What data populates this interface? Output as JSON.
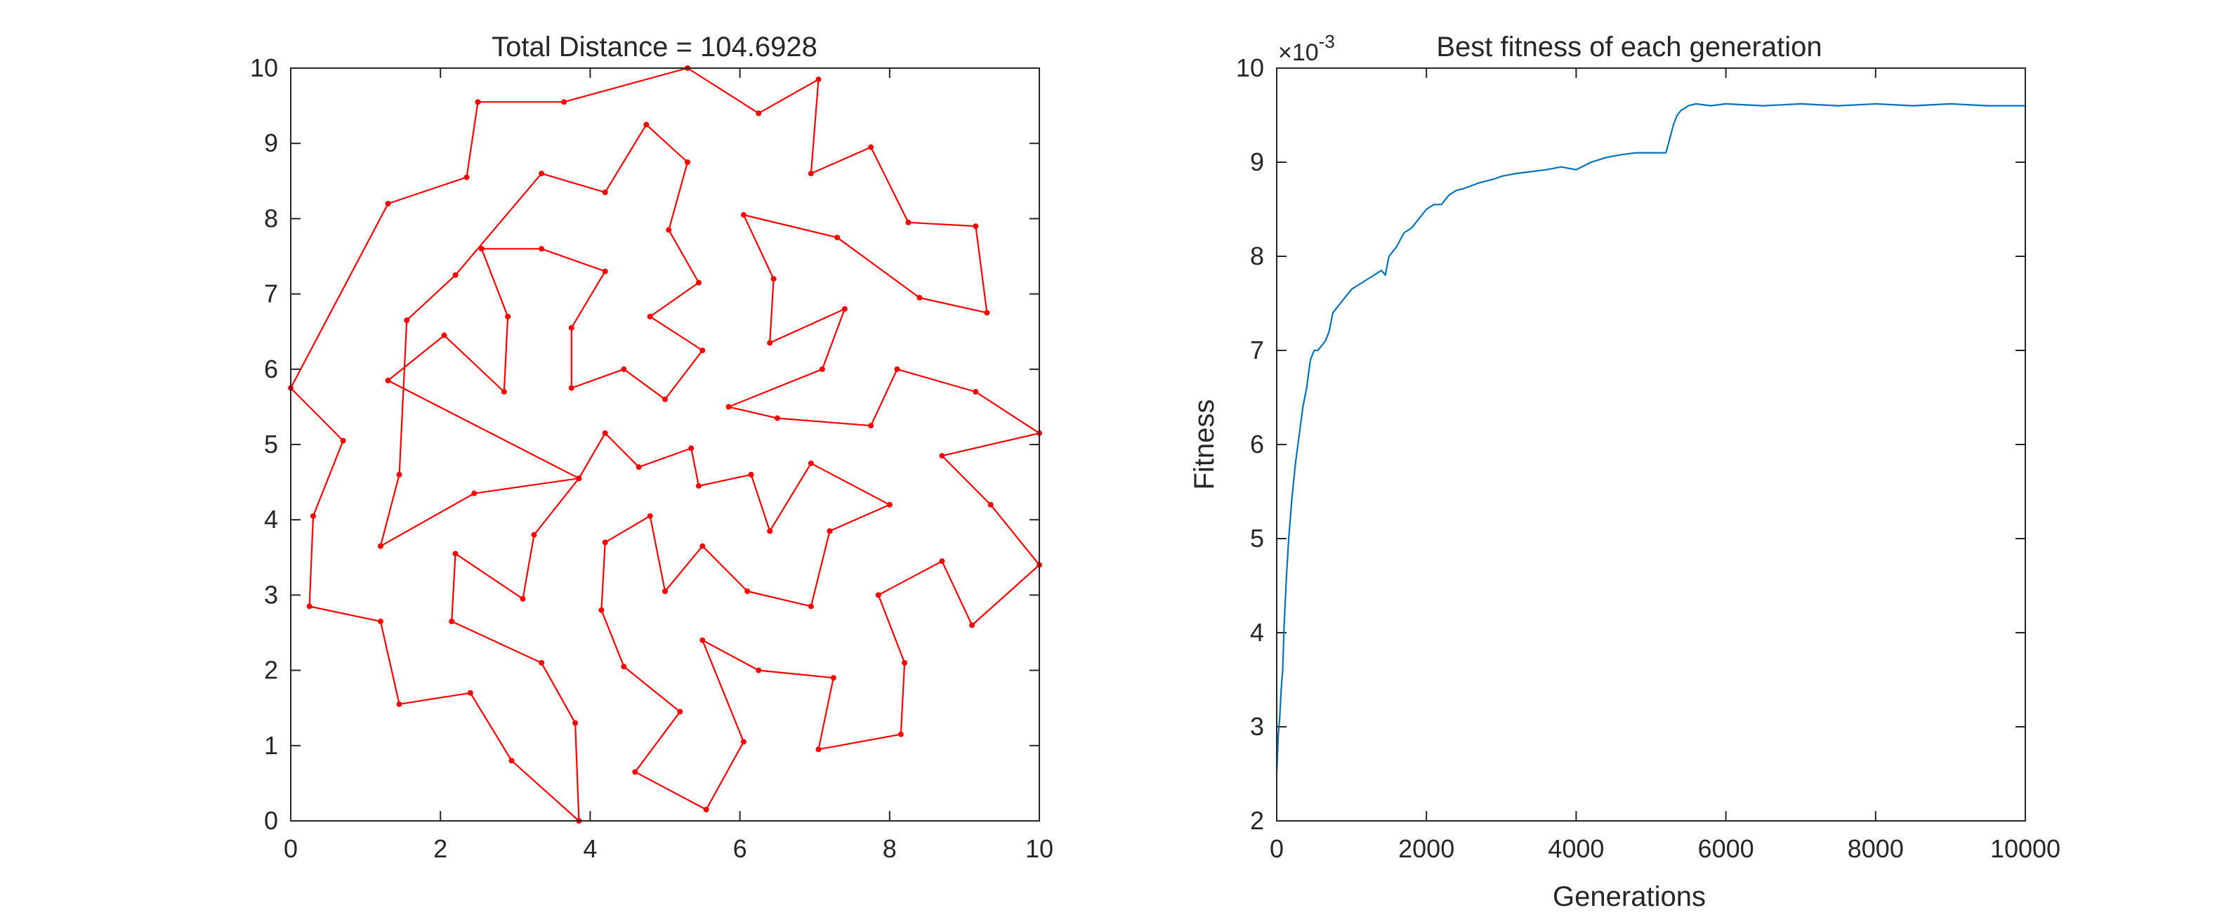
{
  "colors": {
    "tour": "#ff0000",
    "fitness": "#0072bd",
    "axes": "#262626",
    "background": "#ffffff"
  },
  "chart_data": [
    {
      "type": "line",
      "title": "Total Distance = 104.6928",
      "xlabel": "",
      "ylabel": "",
      "xlim": [
        0,
        10
      ],
      "ylim": [
        0,
        10
      ],
      "xticks": [
        "0",
        "2",
        "4",
        "6",
        "8",
        "10"
      ],
      "yticks": [
        "0",
        "1",
        "2",
        "3",
        "4",
        "5",
        "6",
        "7",
        "8",
        "9",
        "10"
      ],
      "grid": false,
      "markers": true,
      "closed": true,
      "series": [
        {
          "x": [
            0.0,
            0.7,
            0.3,
            0.25,
            1.2,
            1.45,
            2.4,
            2.95,
            3.85,
            3.8,
            3.35,
            2.15,
            2.2,
            3.1,
            3.25,
            3.85,
            1.3,
            2.05,
            2.85,
            2.9,
            2.55,
            3.35,
            4.2,
            3.75,
            3.75,
            4.45,
            5.0,
            5.5,
            4.8,
            5.45,
            5.05,
            5.3,
            4.75,
            4.2,
            3.35,
            2.2,
            1.55,
            1.45,
            1.2,
            2.45,
            3.85,
            4.2,
            4.65,
            5.35,
            5.45,
            6.15,
            6.4,
            6.95,
            8.0,
            7.2,
            6.95,
            6.1,
            5.5,
            5.0,
            4.8,
            4.2,
            4.15,
            4.45,
            5.2,
            4.6,
            5.55,
            6.05,
            5.5,
            6.25,
            7.25,
            7.05,
            8.15,
            8.2,
            7.85,
            8.7,
            9.1,
            10.0,
            9.35,
            8.7,
            10.0,
            9.15,
            8.1,
            7.75,
            6.5,
            5.85,
            7.1,
            7.4,
            6.4,
            6.45,
            6.05,
            7.3,
            8.4,
            9.3,
            9.15,
            8.25,
            7.75,
            6.95,
            7.05,
            6.25,
            5.3,
            3.65,
            2.5,
            2.35,
            1.3
          ],
          "y": [
            5.75,
            5.05,
            4.05,
            2.85,
            2.65,
            1.55,
            1.7,
            0.8,
            0.0,
            1.3,
            2.1,
            2.65,
            3.55,
            2.95,
            3.8,
            4.55,
            5.85,
            6.45,
            5.7,
            6.7,
            7.6,
            7.6,
            7.3,
            6.55,
            5.75,
            6.0,
            5.6,
            6.25,
            6.7,
            7.15,
            7.85,
            8.75,
            9.25,
            8.35,
            8.6,
            7.25,
            6.65,
            4.6,
            3.65,
            4.35,
            4.55,
            5.15,
            4.7,
            4.95,
            4.45,
            4.6,
            3.85,
            4.75,
            4.2,
            3.85,
            2.85,
            3.05,
            3.65,
            3.05,
            4.05,
            3.7,
            2.8,
            2.05,
            1.45,
            0.65,
            0.15,
            1.05,
            2.4,
            2.0,
            1.9,
            0.95,
            1.15,
            2.1,
            3.0,
            3.45,
            2.6,
            3.4,
            4.2,
            4.85,
            5.15,
            5.7,
            6.0,
            5.25,
            5.35,
            5.5,
            6.0,
            6.8,
            6.35,
            7.2,
            8.05,
            7.75,
            6.95,
            6.75,
            7.9,
            7.95,
            8.95,
            8.6,
            9.85,
            9.4,
            10.0,
            9.55,
            9.55,
            8.55,
            8.2
          ]
        }
      ]
    },
    {
      "type": "line",
      "title": "Best fitness of each generation",
      "xlabel": "Generations",
      "ylabel": "Fitness",
      "xlim": [
        0,
        10000
      ],
      "ylim": [
        2,
        10
      ],
      "exponent_label": "×10-3",
      "xticks": [
        "0",
        "2000",
        "4000",
        "6000",
        "8000",
        "10000"
      ],
      "yticks": [
        "2",
        "3",
        "4",
        "5",
        "6",
        "7",
        "8",
        "9",
        "10"
      ],
      "grid": false,
      "series": [
        {
          "x": [
            0,
            20,
            40,
            60,
            80,
            100,
            130,
            160,
            200,
            250,
            300,
            350,
            400,
            450,
            500,
            550,
            600,
            650,
            700,
            750,
            800,
            850,
            900,
            950,
            1000,
            1100,
            1200,
            1300,
            1400,
            1450,
            1500,
            1600,
            1700,
            1800,
            1900,
            2000,
            2100,
            2200,
            2300,
            2400,
            2500,
            2600,
            2700,
            2800,
            2900,
            3000,
            3200,
            3400,
            3600,
            3800,
            4000,
            4200,
            4400,
            4600,
            4800,
            5000,
            5200,
            5300,
            5350,
            5400,
            5500,
            5600,
            5800,
            6000,
            6500,
            7000,
            7500,
            8000,
            8500,
            9000,
            9500,
            10000
          ],
          "y": [
            2.5,
            2.9,
            3.1,
            3.4,
            3.6,
            4.1,
            4.6,
            5.0,
            5.4,
            5.8,
            6.1,
            6.4,
            6.6,
            6.9,
            7.0,
            7.0,
            7.05,
            7.1,
            7.2,
            7.4,
            7.45,
            7.5,
            7.55,
            7.6,
            7.65,
            7.7,
            7.75,
            7.8,
            7.85,
            7.8,
            8.0,
            8.1,
            8.25,
            8.3,
            8.4,
            8.5,
            8.55,
            8.55,
            8.65,
            8.7,
            8.72,
            8.75,
            8.78,
            8.8,
            8.82,
            8.85,
            8.88,
            8.9,
            8.92,
            8.95,
            8.92,
            9.0,
            9.05,
            9.08,
            9.1,
            9.1,
            9.1,
            9.4,
            9.5,
            9.55,
            9.6,
            9.62,
            9.6,
            9.62,
            9.6,
            9.62,
            9.6,
            9.62,
            9.6,
            9.62,
            9.6,
            9.6
          ]
        }
      ]
    }
  ]
}
